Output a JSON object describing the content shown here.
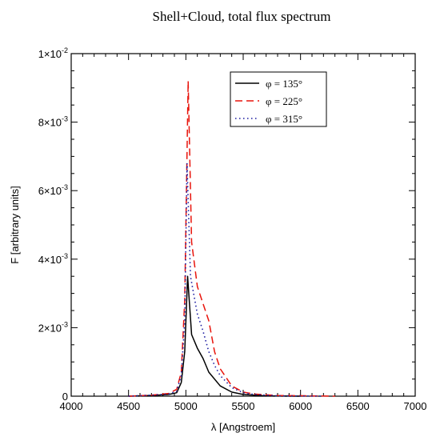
{
  "chart_data": {
    "type": "line",
    "title": "Shell+Cloud, total flux spectrum",
    "xlabel": "λ [Angstroem]",
    "ylabel": "F [arbitrary units]",
    "xlim": [
      4000,
      7000
    ],
    "ylim": [
      0,
      0.01
    ],
    "x_ticks": [
      4000,
      4500,
      5000,
      5500,
      6000,
      6500,
      7000
    ],
    "y_ticks": [
      {
        "value": 0,
        "mantissa": "0",
        "exponent": ""
      },
      {
        "value": 0.002,
        "mantissa": "2×10",
        "exponent": "-3"
      },
      {
        "value": 0.004,
        "mantissa": "4×10",
        "exponent": "-3"
      },
      {
        "value": 0.006,
        "mantissa": "6×10",
        "exponent": "-3"
      },
      {
        "value": 0.008,
        "mantissa": "8×10",
        "exponent": "-3"
      },
      {
        "value": 0.01,
        "mantissa": "1×10",
        "exponent": "-2"
      }
    ],
    "grid": false,
    "legend_position": "top-right",
    "series": [
      {
        "name": "φ = 135°",
        "color": "#000000",
        "dash": "solid",
        "points": [
          [
            4500,
            0
          ],
          [
            4700,
            2e-05
          ],
          [
            4850,
            5e-05
          ],
          [
            4920,
            0.0001
          ],
          [
            4960,
            0.0004
          ],
          [
            4990,
            0.0013
          ],
          [
            5015,
            0.0035
          ],
          [
            5050,
            0.0018
          ],
          [
            5100,
            0.0014
          ],
          [
            5150,
            0.0011
          ],
          [
            5200,
            0.0007
          ],
          [
            5300,
            0.0003
          ],
          [
            5400,
            0.00012
          ],
          [
            5500,
            5e-05
          ],
          [
            5700,
            1e-05
          ],
          [
            6000,
            0
          ]
        ]
      },
      {
        "name": "φ = 225°",
        "color": "#e8140c",
        "dash": "dashed",
        "points": [
          [
            4500,
            0
          ],
          [
            4700,
            3e-05
          ],
          [
            4850,
            8e-05
          ],
          [
            4920,
            0.0002
          ],
          [
            4960,
            0.0007
          ],
          [
            4990,
            0.0028
          ],
          [
            5020,
            0.0092
          ],
          [
            5050,
            0.0045
          ],
          [
            5100,
            0.0032
          ],
          [
            5150,
            0.0027
          ],
          [
            5200,
            0.0022
          ],
          [
            5250,
            0.0013
          ],
          [
            5300,
            0.0008
          ],
          [
            5400,
            0.0003
          ],
          [
            5500,
            0.00012
          ],
          [
            5600,
            6e-05
          ],
          [
            5800,
            2e-05
          ],
          [
            6300,
            0
          ]
        ]
      },
      {
        "name": "φ = 315°",
        "color": "#1a1aa0",
        "dash": "dotted",
        "points": [
          [
            4500,
            0
          ],
          [
            4700,
            3e-05
          ],
          [
            4850,
            6e-05
          ],
          [
            4920,
            0.00015
          ],
          [
            4960,
            0.0006
          ],
          [
            4990,
            0.0022
          ],
          [
            5010,
            0.0068
          ],
          [
            5040,
            0.0035
          ],
          [
            5100,
            0.0024
          ],
          [
            5150,
            0.0019
          ],
          [
            5200,
            0.0013
          ],
          [
            5250,
            0.0009
          ],
          [
            5300,
            0.0006
          ],
          [
            5400,
            0.00025
          ],
          [
            5500,
            0.0001
          ],
          [
            5600,
            5e-05
          ],
          [
            5800,
            1e-05
          ],
          [
            6200,
            0
          ]
        ]
      }
    ]
  }
}
